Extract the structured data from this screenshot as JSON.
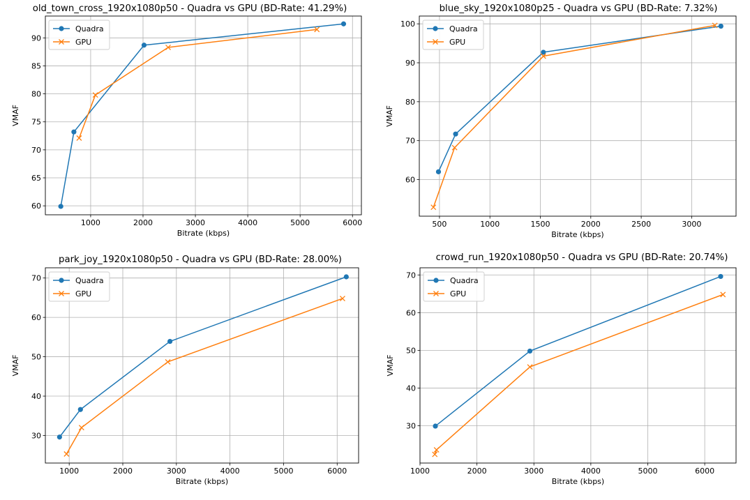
{
  "colors": {
    "quadra": "#1f77b4",
    "gpu": "#ff7f0e",
    "grid": "#b0b0b0"
  },
  "chart_data": [
    {
      "type": "line",
      "title": "old_town_cross_1920x1080p50 - Quadra vs GPU (BD-Rate: 41.29%)",
      "xlabel": "Bitrate (kbps)",
      "ylabel": "VMAF",
      "xlim": [
        135,
        6170
      ],
      "ylim": [
        58.4,
        93.9
      ],
      "xticks": [
        1000,
        2000,
        3000,
        4000,
        5000,
        6000
      ],
      "yticks": [
        60,
        65,
        70,
        75,
        80,
        85,
        90
      ],
      "grid": true,
      "legend": "upper-left",
      "series": [
        {
          "name": "Quadra",
          "marker": "circle",
          "color": "#1f77b4",
          "x": [
            430,
            680,
            2020,
            5830
          ],
          "y": [
            59.9,
            73.2,
            88.7,
            92.5
          ]
        },
        {
          "name": "GPU",
          "marker": "x",
          "color": "#ff7f0e",
          "x": [
            780,
            1090,
            2480,
            5320
          ],
          "y": [
            72.1,
            79.8,
            88.3,
            91.5
          ]
        }
      ]
    },
    {
      "type": "line",
      "title": "blue_sky_1920x1080p25 - Quadra vs GPU (BD-Rate: 7.32%)",
      "xlabel": "Bitrate (kbps)",
      "ylabel": "VMAF",
      "xlim": [
        300,
        3440
      ],
      "ylim": [
        50.6,
        102.0
      ],
      "xticks": [
        500,
        1000,
        1500,
        2000,
        2500,
        3000
      ],
      "yticks": [
        60,
        70,
        80,
        90,
        100
      ],
      "grid": true,
      "legend": "upper-left",
      "series": [
        {
          "name": "Quadra",
          "marker": "circle",
          "color": "#1f77b4",
          "x": [
            490,
            660,
            1530,
            3290
          ],
          "y": [
            62.0,
            71.7,
            92.7,
            99.4
          ]
        },
        {
          "name": "GPU",
          "marker": "x",
          "color": "#ff7f0e",
          "x": [
            440,
            650,
            1530,
            3230
          ],
          "y": [
            52.9,
            68.2,
            91.7,
            99.6
          ]
        }
      ]
    },
    {
      "type": "line",
      "title": "park_joy_1920x1080p50 - Quadra vs GPU (BD-Rate: 28.00%)",
      "xlabel": "Bitrate (kbps)",
      "ylabel": "VMAF",
      "xlim": [
        555,
        6400
      ],
      "ylim": [
        23.0,
        72.6
      ],
      "xticks": [
        1000,
        2000,
        3000,
        4000,
        5000,
        6000
      ],
      "yticks": [
        30,
        40,
        50,
        60,
        70
      ],
      "grid": true,
      "legend": "upper-left",
      "series": [
        {
          "name": "Quadra",
          "marker": "circle",
          "color": "#1f77b4",
          "x": [
            820,
            1210,
            2880,
            6170
          ],
          "y": [
            29.6,
            36.6,
            53.9,
            70.3
          ]
        },
        {
          "name": "GPU",
          "marker": "x",
          "color": "#ff7f0e",
          "x": [
            950,
            1230,
            2840,
            6100
          ],
          "y": [
            25.3,
            32.0,
            48.7,
            64.8
          ]
        }
      ]
    },
    {
      "type": "line",
      "title": "crowd_run_1920x1080p50 - Quadra vs GPU (BD-Rate: 20.74%)",
      "xlabel": "Bitrate (kbps)",
      "ylabel": "VMAF",
      "xlim": [
        1000,
        6550
      ],
      "ylim": [
        20.1,
        71.9
      ],
      "xticks": [
        1000,
        2000,
        3000,
        4000,
        5000,
        6000
      ],
      "yticks": [
        30,
        40,
        50,
        60,
        70
      ],
      "grid": true,
      "legend": "upper-left",
      "series": [
        {
          "name": "Quadra",
          "marker": "circle",
          "color": "#1f77b4",
          "x": [
            1270,
            2930,
            6280
          ],
          "y": [
            29.9,
            49.8,
            69.6
          ]
        },
        {
          "name": "GPU",
          "marker": "x",
          "color": "#ff7f0e",
          "x": [
            1260,
            1290,
            2930,
            6320
          ],
          "y": [
            22.4,
            23.6,
            45.6,
            64.8
          ]
        }
      ]
    }
  ]
}
